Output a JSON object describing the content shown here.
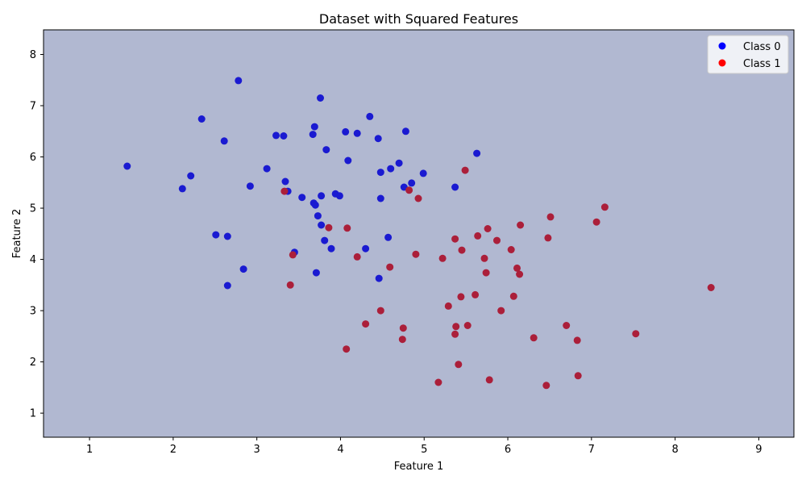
{
  "chart_data": {
    "type": "scatter",
    "title": "Dataset with Squared Features",
    "xlabel": "Feature 1",
    "ylabel": "Feature 2",
    "xlim": [
      0.45,
      9.42
    ],
    "ylim": [
      0.53,
      8.48
    ],
    "xticks": [
      1,
      2,
      3,
      4,
      5,
      6,
      7,
      8,
      9
    ],
    "yticks": [
      1,
      2,
      3,
      4,
      5,
      6,
      7,
      8
    ],
    "grid": false,
    "legend_position": "top-right",
    "background_color": "#b1b8d1",
    "series": [
      {
        "name": "Class 0",
        "color": "#0000ff",
        "marker_color": "#1a1ad1",
        "points": [
          [
            1.45,
            5.82
          ],
          [
            2.11,
            5.38
          ],
          [
            2.21,
            5.63
          ],
          [
            2.34,
            6.74
          ],
          [
            2.51,
            4.48
          ],
          [
            2.61,
            6.31
          ],
          [
            2.65,
            4.45
          ],
          [
            2.65,
            3.49
          ],
          [
            2.78,
            7.49
          ],
          [
            2.84,
            3.81
          ],
          [
            2.92,
            5.43
          ],
          [
            3.12,
            5.77
          ],
          [
            3.23,
            6.42
          ],
          [
            3.32,
            6.41
          ],
          [
            3.34,
            5.52
          ],
          [
            3.37,
            5.33
          ],
          [
            3.45,
            4.14
          ],
          [
            3.54,
            5.21
          ],
          [
            3.67,
            6.44
          ],
          [
            3.68,
            5.1
          ],
          [
            3.69,
            6.59
          ],
          [
            3.7,
            5.06
          ],
          [
            3.71,
            3.74
          ],
          [
            3.73,
            4.85
          ],
          [
            3.76,
            7.15
          ],
          [
            3.77,
            5.24
          ],
          [
            3.77,
            4.67
          ],
          [
            3.81,
            4.37
          ],
          [
            3.83,
            6.14
          ],
          [
            3.89,
            4.21
          ],
          [
            3.94,
            5.28
          ],
          [
            3.99,
            5.24
          ],
          [
            4.06,
            6.49
          ],
          [
            4.09,
            5.93
          ],
          [
            4.2,
            6.46
          ],
          [
            4.3,
            4.21
          ],
          [
            4.35,
            6.79
          ],
          [
            4.45,
            6.36
          ],
          [
            4.46,
            3.63
          ],
          [
            4.48,
            5.7
          ],
          [
            4.48,
            5.19
          ],
          [
            4.57,
            4.43
          ],
          [
            4.6,
            5.77
          ],
          [
            4.7,
            5.88
          ],
          [
            4.76,
            5.41
          ],
          [
            4.78,
            6.5
          ],
          [
            4.85,
            5.49
          ],
          [
            4.99,
            5.68
          ],
          [
            5.37,
            5.41
          ],
          [
            5.63,
            6.07
          ]
        ]
      },
      {
        "name": "Class 1",
        "color": "#ff0000",
        "marker_color": "#ab1f3a",
        "points": [
          [
            3.33,
            5.33
          ],
          [
            3.4,
            3.5
          ],
          [
            3.43,
            4.09
          ],
          [
            3.86,
            4.62
          ],
          [
            4.07,
            2.25
          ],
          [
            4.08,
            4.61
          ],
          [
            4.2,
            4.05
          ],
          [
            4.3,
            2.74
          ],
          [
            4.48,
            3.0
          ],
          [
            4.59,
            3.85
          ],
          [
            4.74,
            2.44
          ],
          [
            4.75,
            2.66
          ],
          [
            4.82,
            5.35
          ],
          [
            4.9,
            4.1
          ],
          [
            4.93,
            5.19
          ],
          [
            5.17,
            1.6
          ],
          [
            5.22,
            4.02
          ],
          [
            5.29,
            3.09
          ],
          [
            5.37,
            2.54
          ],
          [
            5.37,
            4.4
          ],
          [
            5.38,
            2.69
          ],
          [
            5.41,
            1.95
          ],
          [
            5.44,
            3.27
          ],
          [
            5.45,
            4.18
          ],
          [
            5.49,
            5.74
          ],
          [
            5.52,
            2.71
          ],
          [
            5.61,
            3.31
          ],
          [
            5.64,
            4.46
          ],
          [
            5.72,
            4.02
          ],
          [
            5.74,
            3.74
          ],
          [
            5.76,
            4.6
          ],
          [
            5.78,
            1.65
          ],
          [
            5.87,
            4.37
          ],
          [
            5.92,
            3.0
          ],
          [
            6.04,
            4.19
          ],
          [
            6.07,
            3.28
          ],
          [
            6.11,
            3.83
          ],
          [
            6.14,
            3.71
          ],
          [
            6.15,
            4.67
          ],
          [
            6.31,
            2.47
          ],
          [
            6.46,
            1.54
          ],
          [
            6.48,
            4.42
          ],
          [
            6.51,
            4.83
          ],
          [
            6.7,
            2.71
          ],
          [
            6.83,
            2.42
          ],
          [
            6.84,
            1.73
          ],
          [
            7.06,
            4.73
          ],
          [
            7.16,
            5.02
          ],
          [
            7.53,
            2.55
          ],
          [
            8.43,
            3.45
          ]
        ]
      }
    ]
  }
}
